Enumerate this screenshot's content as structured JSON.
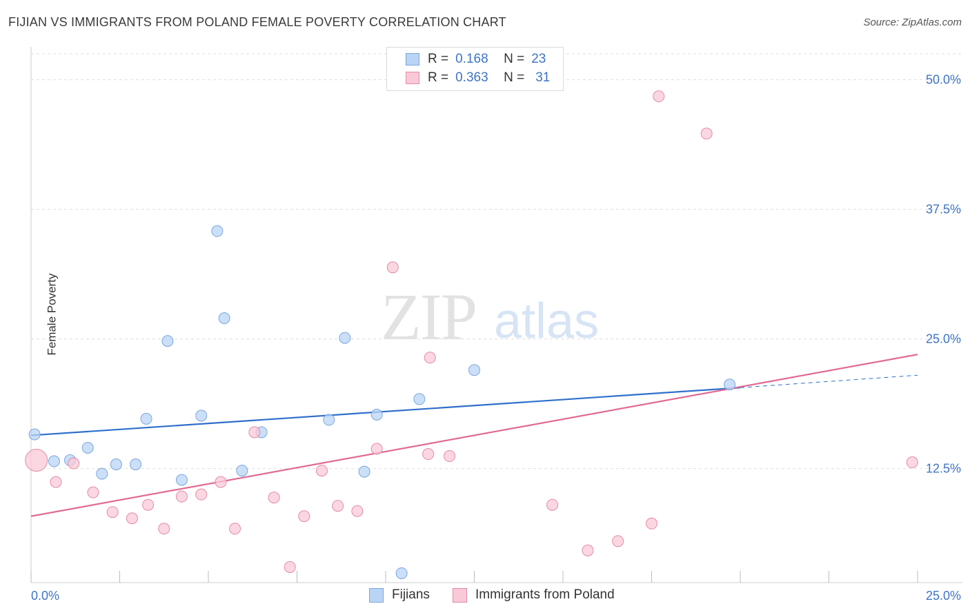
{
  "title": "FIJIAN VS IMMIGRANTS FROM POLAND FEMALE POVERTY CORRELATION CHART",
  "source": "Source: ZipAtlas.com",
  "watermark": {
    "zip": "ZIP",
    "atlas": "atlas"
  },
  "legend": {
    "r_label": "R =",
    "n_label": "N =",
    "rows": [
      {
        "r": "0.168",
        "n": "23",
        "color": "#b9d4f5",
        "border": "#7aa6dc"
      },
      {
        "r": "0.363",
        "n": "31",
        "color": "#f9c9d7",
        "border": "#e48aa6"
      }
    ]
  },
  "bottom_legend": [
    "Fijians",
    "Immigrants from Poland"
  ],
  "chart_data": {
    "type": "scatter",
    "xlabel": "",
    "ylabel": "Female Poverty",
    "xlim": [
      0,
      25
    ],
    "ylim": [
      1.5,
      52.5
    ],
    "x_tick_labels": [
      "0.0%",
      "25.0%"
    ],
    "y_ticks": [
      12.5,
      25.0,
      37.5,
      50.0
    ],
    "y_tick_labels": [
      "12.5%",
      "25.0%",
      "37.5%",
      "50.0%"
    ],
    "grid": "horizontal dashed",
    "legend_position": "top-center",
    "series": [
      {
        "name": "Fijians",
        "color": "#b9d4f5",
        "stroke": "#7aa6dc",
        "line_color": "#2f6fcb",
        "trend": {
          "x": [
            0,
            20
          ],
          "y": [
            15.7,
            20.3
          ]
        },
        "trend_dashed": {
          "x": [
            20,
            25
          ],
          "y": [
            20.3,
            21.5
          ]
        },
        "points": [
          {
            "x": 0.1,
            "y": 15.8
          },
          {
            "x": 0.65,
            "y": 13.2
          },
          {
            "x": 1.1,
            "y": 13.3
          },
          {
            "x": 1.6,
            "y": 14.5
          },
          {
            "x": 2.0,
            "y": 12.0
          },
          {
            "x": 2.4,
            "y": 12.9
          },
          {
            "x": 2.95,
            "y": 12.9
          },
          {
            "x": 3.25,
            "y": 17.3
          },
          {
            "x": 3.85,
            "y": 24.8
          },
          {
            "x": 4.25,
            "y": 11.4
          },
          {
            "x": 4.8,
            "y": 17.6
          },
          {
            "x": 5.25,
            "y": 35.4
          },
          {
            "x": 5.45,
            "y": 27.0
          },
          {
            "x": 5.95,
            "y": 12.3
          },
          {
            "x": 6.5,
            "y": 16.0
          },
          {
            "x": 8.4,
            "y": 17.2
          },
          {
            "x": 8.85,
            "y": 25.1
          },
          {
            "x": 9.4,
            "y": 12.2
          },
          {
            "x": 9.75,
            "y": 17.7
          },
          {
            "x": 10.45,
            "y": 2.4
          },
          {
            "x": 10.95,
            "y": 19.2
          },
          {
            "x": 12.5,
            "y": 22.0
          },
          {
            "x": 19.7,
            "y": 20.6
          }
        ]
      },
      {
        "name": "Immigrants from Poland",
        "color": "#f9c9d7",
        "stroke": "#e48aa6",
        "line_color": "#e06a93",
        "trend": {
          "x": [
            0,
            25
          ],
          "y": [
            7.9,
            23.5
          ]
        },
        "points": [
          {
            "x": 0.15,
            "y": 13.3,
            "big": true
          },
          {
            "x": 0.7,
            "y": 11.2
          },
          {
            "x": 1.2,
            "y": 13.0
          },
          {
            "x": 1.75,
            "y": 10.2
          },
          {
            "x": 2.3,
            "y": 8.3
          },
          {
            "x": 2.85,
            "y": 7.7
          },
          {
            "x": 3.3,
            "y": 9.0
          },
          {
            "x": 3.75,
            "y": 6.7
          },
          {
            "x": 4.25,
            "y": 9.8
          },
          {
            "x": 4.8,
            "y": 10.0
          },
          {
            "x": 5.35,
            "y": 11.2
          },
          {
            "x": 5.75,
            "y": 6.7
          },
          {
            "x": 6.3,
            "y": 16.0
          },
          {
            "x": 6.85,
            "y": 9.7
          },
          {
            "x": 7.3,
            "y": 3.0
          },
          {
            "x": 7.7,
            "y": 7.9
          },
          {
            "x": 8.2,
            "y": 12.3
          },
          {
            "x": 8.65,
            "y": 8.9
          },
          {
            "x": 9.2,
            "y": 8.4
          },
          {
            "x": 9.75,
            "y": 14.4
          },
          {
            "x": 10.2,
            "y": 31.9
          },
          {
            "x": 11.25,
            "y": 23.2
          },
          {
            "x": 11.2,
            "y": 13.9
          },
          {
            "x": 11.8,
            "y": 13.7
          },
          {
            "x": 14.7,
            "y": 9.0
          },
          {
            "x": 15.7,
            "y": 4.6
          },
          {
            "x": 16.55,
            "y": 5.5
          },
          {
            "x": 17.5,
            "y": 7.2
          },
          {
            "x": 17.7,
            "y": 48.4
          },
          {
            "x": 19.05,
            "y": 44.8
          },
          {
            "x": 24.85,
            "y": 13.1
          }
        ]
      }
    ]
  }
}
